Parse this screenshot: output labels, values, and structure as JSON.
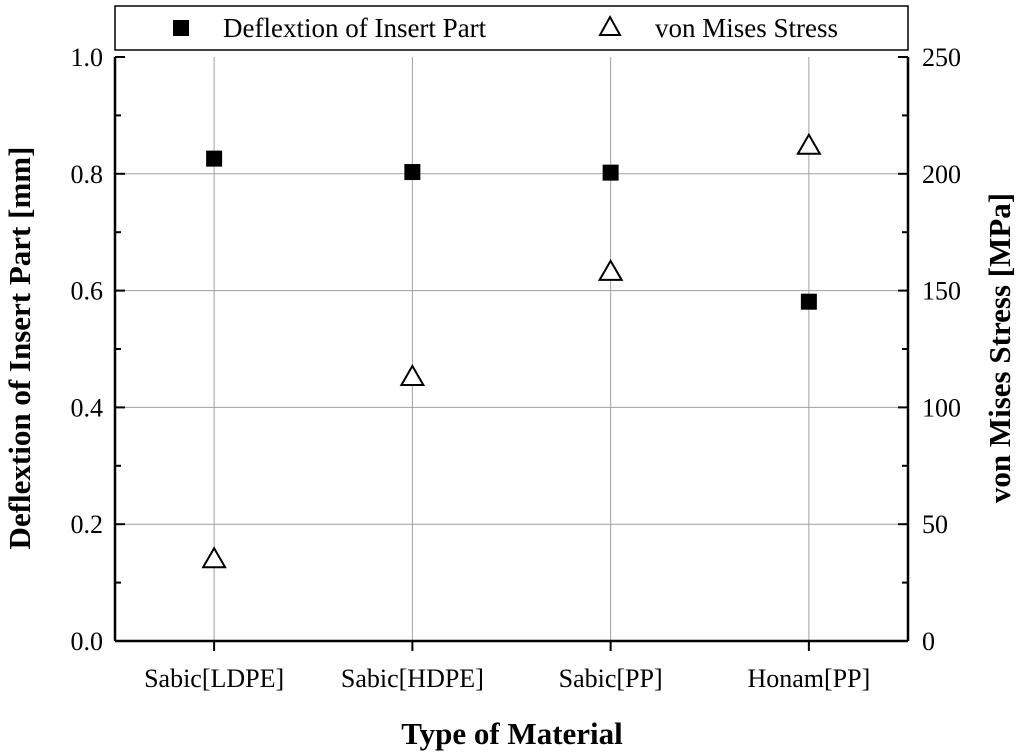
{
  "chart_data": {
    "type": "scatter",
    "categories": [
      "Sabic[LDPE]",
      "Sabic[HDPE]",
      "Sabic[PP]",
      "Honam[PP]"
    ],
    "xlabel": "Type of Material",
    "ylabel": "Deflextion of Insert Part [mm]",
    "y2label": "von Mises Stress [MPa]",
    "ylim": [
      0.0,
      1.0
    ],
    "y2lim": [
      0,
      250
    ],
    "yticks": [
      "0.0",
      "0.2",
      "0.4",
      "0.6",
      "0.8",
      "1.0"
    ],
    "y2ticks": [
      "0",
      "50",
      "100",
      "150",
      "200",
      "250"
    ],
    "grid": true,
    "legend_position": "top",
    "series": [
      {
        "name": "Deflextion of Insert Part",
        "axis": "left",
        "marker": "filled-square",
        "values": [
          0.826,
          0.803,
          0.802,
          0.581
        ]
      },
      {
        "name": "von Mises Stress",
        "axis": "right",
        "marker": "open-triangle",
        "values": [
          35,
          113,
          158,
          212
        ]
      }
    ],
    "colors": {
      "marker": "#000000",
      "grid": "#a0a0a0",
      "background": "#ffffff"
    }
  }
}
